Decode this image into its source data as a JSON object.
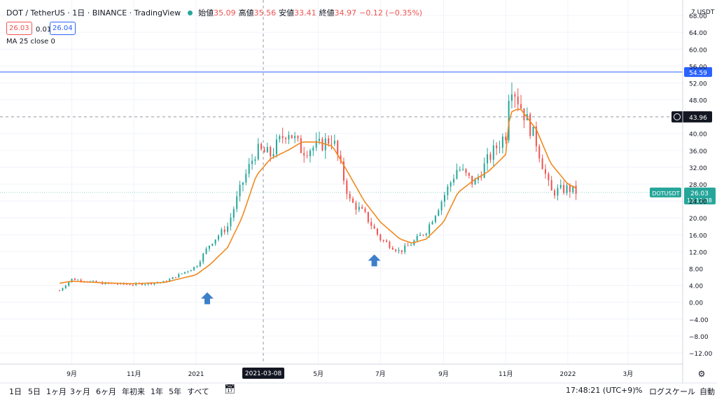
{
  "header": {
    "symbol": "DOT / TetherUS · 1日 · BINANCE · TradingView",
    "open_label": "始値",
    "open": "35.09",
    "high_label": "高値",
    "high": "35.56",
    "low_label": "安値",
    "low": "33.41",
    "close_label": "終値",
    "close": "34.97",
    "change": "−0.12 (−0.35%)",
    "bid": "26.03",
    "spread": "0.01",
    "ask": "26.04",
    "indicator": "MA 25 close 0"
  },
  "axis": {
    "unit": "7 USDT",
    "y_ticks": [
      "68.00",
      "64.00",
      "60.00",
      "56.00",
      "52.00",
      "48.00",
      "40.00",
      "36.00",
      "32.00",
      "28.00",
      "24.00",
      "20.00",
      "16.00",
      "12.00",
      "8.00",
      "4.00",
      "0.00",
      "−4.00",
      "−8.00",
      "−12.00"
    ],
    "x_ticks": [
      "9月",
      "11月",
      "2021",
      "5月",
      "7月",
      "9月",
      "11月",
      "2022",
      "3月"
    ],
    "crosshair_date": "2021-03-08",
    "crosshair_price": "43.96",
    "hline_price": "54.59",
    "last_symbol": "DOTUSDT",
    "last_price": "26.03",
    "countdown": "15:11:38"
  },
  "toolbar": {
    "ranges": [
      "1日",
      "5日",
      "1ヶ月",
      "3ヶ月",
      "6ヶ月",
      "年初来",
      "1年",
      "5年",
      "すべて"
    ],
    "time": "17:48:21 (UTC+9)",
    "percent": "%",
    "log": "ログスケール",
    "auto": "自動"
  },
  "colors": {
    "up": "#26a69a",
    "down": "#ef5350",
    "ma": "#f0891f",
    "hline": "#2962ff",
    "arrow": "#3d7fc9",
    "text": "#131722"
  },
  "chart_data": {
    "type": "candlestick",
    "x": [
      "2020-08-20",
      "2020-09-01",
      "2020-10-01",
      "2020-11-01",
      "2020-12-01",
      "2021-01-01",
      "2021-01-15",
      "2021-02-01",
      "2021-02-15",
      "2021-03-01",
      "2021-03-15",
      "2021-04-01",
      "2021-04-15",
      "2021-05-01",
      "2021-05-15",
      "2021-06-01",
      "2021-06-15",
      "2021-07-01",
      "2021-07-20",
      "2021-08-01",
      "2021-08-15",
      "2021-09-01",
      "2021-09-15",
      "2021-10-01",
      "2021-10-15",
      "2021-11-01",
      "2021-11-05",
      "2021-11-15",
      "2021-12-01",
      "2021-12-15",
      "2022-01-01",
      "2022-01-10"
    ],
    "close": [
      2.8,
      5.5,
      4.5,
      4.2,
      4.8,
      8.5,
      14,
      18,
      28,
      36,
      35,
      41,
      36,
      37,
      39,
      24,
      21,
      15,
      12,
      14,
      17,
      25,
      32,
      28,
      34,
      40,
      53,
      47,
      38,
      26,
      27,
      26.03
    ],
    "ma25": [
      4.5,
      5.0,
      4.6,
      4.4,
      4.7,
      6.5,
      9,
      13,
      20,
      30,
      34,
      36,
      38,
      38,
      37,
      30,
      24,
      19,
      15,
      14,
      15,
      19,
      26,
      29,
      31,
      35,
      45,
      46,
      41,
      33,
      28,
      27
    ],
    "ylim": [
      -14,
      71
    ],
    "ylabel": "USDT",
    "annotations": [
      {
        "type": "arrow-up",
        "date": "2021-01-12",
        "price": 5
      },
      {
        "type": "arrow-up",
        "date": "2021-06-25",
        "price": 14
      }
    ],
    "series": [
      {
        "name": "MA 25 close 0"
      }
    ]
  }
}
